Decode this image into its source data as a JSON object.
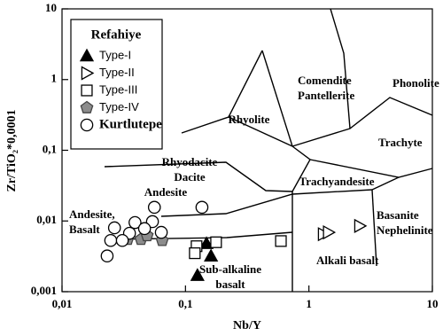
{
  "chart_data": {
    "type": "scatter",
    "x_label": "Nb/Y",
    "y_label": "Zr/TiO₂*0,0001",
    "x_log": true,
    "y_log": true,
    "xlim": [
      0.01,
      10
    ],
    "ylim": [
      0.001,
      10
    ],
    "xticks": [
      {
        "value": 0.01,
        "label": "0,01"
      },
      {
        "value": 0.1,
        "label": "0,1"
      },
      1,
      10
    ],
    "yticks": [
      {
        "value": 0.001,
        "label": "0,001"
      },
      {
        "value": 0.01,
        "label": "0,01"
      },
      {
        "value": 0.1,
        "label": "0,1"
      },
      1,
      10
    ],
    "legend_title": "Refahiye",
    "legend_position": "upper left",
    "series": [
      {
        "name": "Type-I",
        "marker": "triangle",
        "color": "#000000",
        "fill": "#000000",
        "x": [
          0.148,
          0.161,
          0.125
        ],
        "values": [
          0.0048,
          0.0032,
          0.0017
        ]
      },
      {
        "name": "Type-II",
        "marker": "triangle-right",
        "color": "#000000",
        "fill": "#ffffff",
        "x": [
          1.31,
          1.44,
          2.58
        ],
        "values": [
          0.0065,
          0.0069,
          0.0085
        ]
      },
      {
        "name": "Type-III",
        "marker": "square",
        "color": "#000000",
        "fill": "#ffffff",
        "x": [
          0.177,
          0.123,
          0.119,
          0.593
        ],
        "values": [
          0.005,
          0.0044,
          0.0035,
          0.0052
        ]
      },
      {
        "name": "Type-IV",
        "marker": "pentagon",
        "color": "#444444",
        "fill": "#8c8c8c",
        "x": [
          0.034,
          0.0436,
          0.0489,
          0.0648
        ],
        "values": [
          0.0055,
          0.0055,
          0.0062,
          0.0053
        ]
      },
      {
        "name": "Kurtlutepe",
        "marker": "circle",
        "color": "#000000",
        "fill": "#ffffff",
        "x": [
          0.056,
          0.136,
          0.039,
          0.054,
          0.0266,
          0.0466,
          0.0352,
          0.0637,
          0.0248,
          0.0308,
          0.0232
        ],
        "values": [
          0.0156,
          0.0156,
          0.0095,
          0.0098,
          0.008,
          0.0078,
          0.0067,
          0.0069,
          0.0053,
          0.0053,
          0.0032
        ]
      }
    ],
    "annotations": [
      [
        "Comendite",
        "Pantellerite"
      ],
      [
        "Phonolite"
      ],
      [
        "Rhyolite"
      ],
      [
        "Trachyte"
      ],
      [
        "Rhyodacite",
        "Dacite"
      ],
      [
        "Trachyandesite"
      ],
      [
        "Andesite"
      ],
      [
        "Andesite,",
        "Basalt"
      ],
      [
        "Basanite",
        "Nephelinite"
      ],
      [
        "Alkali basalt"
      ],
      [
        "Sub-alkaline",
        "basalt"
      ]
    ]
  }
}
